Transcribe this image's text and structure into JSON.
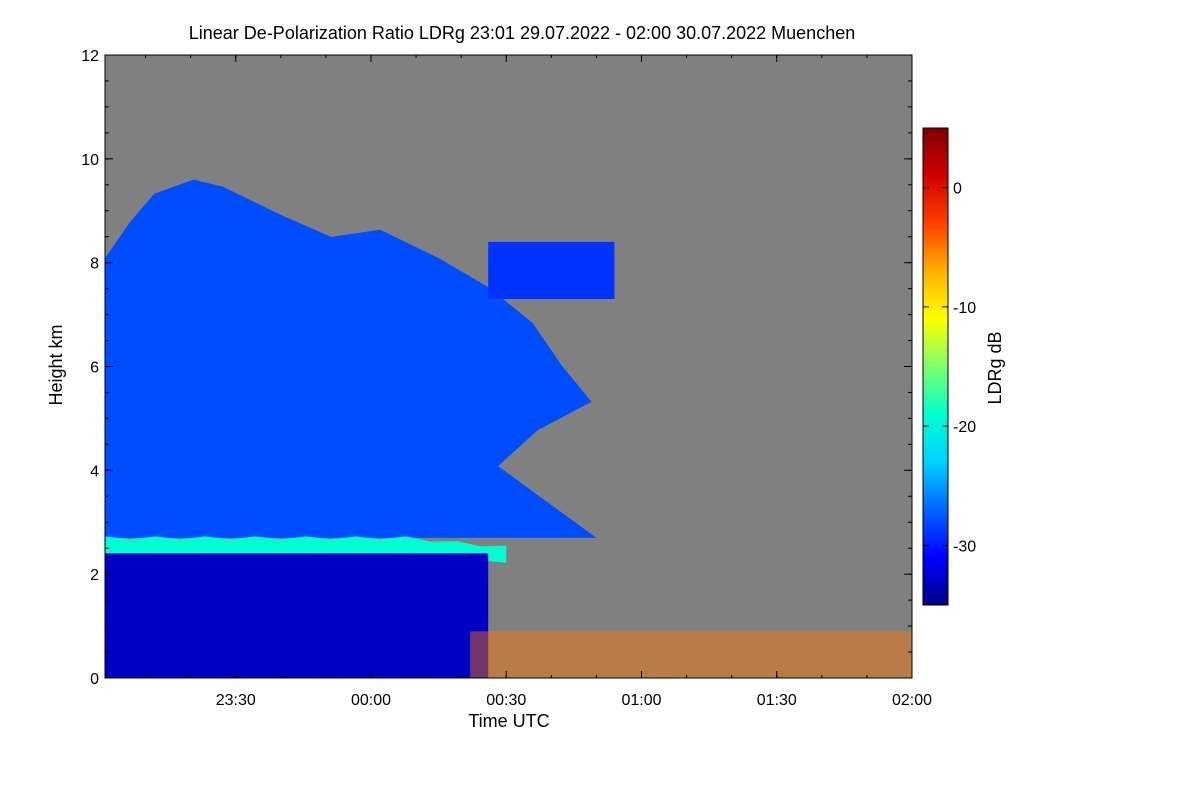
{
  "chart_data": {
    "type": "heatmap",
    "title": "Linear De-Polarization Ratio LDRg   23:01 29.07.2022 - 02:00 30.07.2022 Muenchen",
    "xlabel": "Time UTC",
    "ylabel": "Height km",
    "x_range": [
      "23:01",
      "02:00"
    ],
    "x_ticks": [
      "23:30",
      "00:00",
      "00:30",
      "01:00",
      "01:30",
      "02:00"
    ],
    "y_range": [
      0,
      12
    ],
    "y_ticks": [
      "0",
      "2",
      "4",
      "6",
      "8",
      "10",
      "12"
    ],
    "colorbar": {
      "label": "LDRg dB",
      "range": [
        -35,
        5
      ],
      "ticks": [
        "0",
        "-10",
        "-20",
        "-30"
      ],
      "colors": [
        "#00008a",
        "#0000ff",
        "#0066ff",
        "#00d2ff",
        "#00ffd0",
        "#7fff6a",
        "#ffff00",
        "#ffb000",
        "#ff4000",
        "#d00000",
        "#800000"
      ]
    },
    "background_color": "#808080",
    "features": [
      {
        "type": "ice-cloud",
        "ldr_db": -28,
        "time_from": "23:01",
        "time_to": "00:50",
        "height_from": 2.7,
        "height_to": 9.6
      },
      {
        "type": "melting-layer",
        "ldr_db": -19,
        "time_from": "23:01",
        "time_to": "00:30",
        "height_from": 2.4,
        "height_to": 2.7
      },
      {
        "type": "precipitation",
        "ldr_db": -33,
        "time_from": "23:01",
        "time_to": "00:26",
        "height_from": 0,
        "height_to": 2.4
      },
      {
        "type": "upper-cloud",
        "ldr_db": -29,
        "time_from": "00:26",
        "time_to": "00:54",
        "height_from": 7.3,
        "height_to": 8.4
      },
      {
        "type": "low-level-clutter",
        "ldr_db": -5,
        "time_from": "00:22",
        "time_to": "02:00",
        "height_from": 0,
        "height_to": 0.9
      }
    ]
  }
}
